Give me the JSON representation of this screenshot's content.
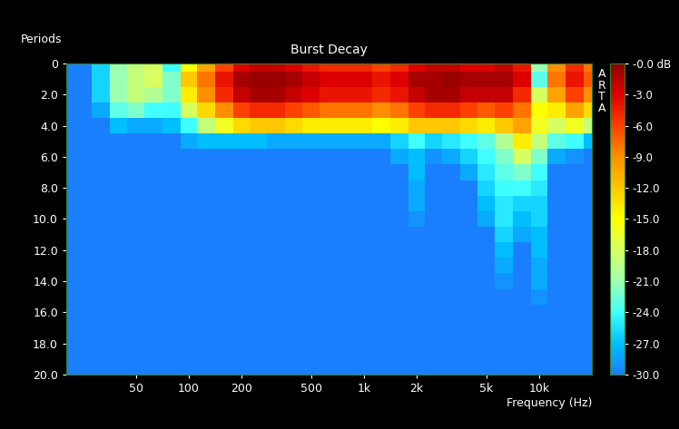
{
  "chart_data": {
    "type": "heatmap",
    "title": "Burst Decay",
    "x_label": "Frequency (Hz)",
    "y_label": "Periods",
    "annotations": [
      "ARTA"
    ],
    "log": "x",
    "xlim": [
      20,
      20000
    ],
    "xticks": [
      50,
      100,
      200,
      500,
      {
        "value": 1000,
        "label": "1k"
      },
      {
        "value": 2000,
        "label": "2k"
      },
      {
        "value": 5000,
        "label": "5k"
      },
      {
        "value": 10000,
        "label": "10k"
      }
    ],
    "ylim": [
      20,
      0
    ],
    "yticks": [
      0,
      {
        "value": 2,
        "label": "2.0"
      },
      {
        "value": 4,
        "label": "4.0"
      },
      {
        "value": 6,
        "label": "6.0"
      },
      {
        "value": 8,
        "label": "8.0"
      },
      {
        "value": 10,
        "label": "10.0"
      },
      {
        "value": 12,
        "label": "12.0"
      },
      {
        "value": 14,
        "label": "14.0"
      },
      {
        "value": 16,
        "label": "16.0"
      },
      {
        "value": 18,
        "label": "18.0"
      },
      {
        "value": 20,
        "label": "20.0"
      }
    ],
    "color_range": [
      -30,
      0
    ],
    "color_ticks": [
      {
        "value": 0,
        "label": "-0.0 dB"
      },
      {
        "value": -3,
        "label": "-3.0"
      },
      {
        "value": -6,
        "label": "-6.0"
      },
      {
        "value": -9,
        "label": "-9.0"
      },
      {
        "value": -12,
        "label": "-12.0"
      },
      {
        "value": -15,
        "label": "-15.0"
      },
      {
        "value": -18,
        "label": "-18.0"
      },
      {
        "value": -21,
        "label": "-21.0"
      },
      {
        "value": -24,
        "label": "-24.0"
      },
      {
        "value": -27,
        "label": "-27.0"
      },
      {
        "value": -30,
        "label": "-30.0"
      }
    ],
    "x": [
      20,
      25,
      31.5,
      40,
      50,
      63,
      80,
      100,
      125,
      160,
      200,
      250,
      315,
      400,
      500,
      630,
      800,
      1000,
      1250,
      1600,
      2000,
      2500,
      3150,
      4000,
      5000,
      6300,
      8000,
      10000,
      12500,
      16000,
      20000
    ],
    "y": [
      0,
      1,
      2,
      3,
      4,
      5,
      6,
      7,
      8,
      9,
      10,
      11,
      12,
      13,
      14,
      15,
      16,
      17,
      18,
      19,
      20
    ],
    "cells": [
      [
        -30,
        -30,
        -30,
        -30,
        -30,
        -30,
        -30,
        -30,
        -30,
        -30,
        -30,
        -30,
        -30,
        -30,
        -30,
        -30,
        -30,
        -30,
        -30,
        -30,
        -30
      ],
      [
        -30,
        -30,
        -30,
        -30,
        -30,
        -30,
        -30,
        -30,
        -30,
        -30,
        -30,
        -30,
        -30,
        -30,
        -30,
        -30,
        -30,
        -30,
        -30,
        -30,
        -30
      ],
      [
        -26,
        -26,
        -26,
        -28,
        -30,
        -30,
        -30,
        -30,
        -30,
        -30,
        -30,
        -30,
        -30,
        -30,
        -30,
        -30,
        -30,
        -30,
        -30,
        -30,
        -30
      ],
      [
        -21,
        -21,
        -21,
        -23,
        -27,
        -30,
        -30,
        -30,
        -30,
        -30,
        -30,
        -30,
        -30,
        -30,
        -30,
        -30,
        -30,
        -30,
        -30,
        -30,
        -30
      ],
      [
        -19,
        -19,
        -19,
        -22,
        -28,
        -30,
        -30,
        -30,
        -30,
        -30,
        -30,
        -30,
        -30,
        -30,
        -30,
        -30,
        -30,
        -30,
        -30,
        -30,
        -30
      ],
      [
        -18,
        -18,
        -20,
        -24,
        -28,
        -30,
        -30,
        -30,
        -30,
        -30,
        -30,
        -30,
        -30,
        -30,
        -30,
        -30,
        -30,
        -30,
        -30,
        -30,
        -30
      ],
      [
        -24,
        -22,
        -22,
        -24,
        -27,
        -30,
        -30,
        -30,
        -30,
        -30,
        -30,
        -30,
        -30,
        -30,
        -30,
        -30,
        -30,
        -30,
        -30,
        -30,
        -30
      ],
      [
        -15,
        -12,
        -14,
        -18,
        -24,
        -28,
        -30,
        -30,
        -30,
        -30,
        -30,
        -30,
        -30,
        -30,
        -30,
        -30,
        -30,
        -30,
        -30,
        -30,
        -30
      ],
      [
        -10,
        -8,
        -9,
        -13,
        -19,
        -27,
        -30,
        -30,
        -30,
        -30,
        -30,
        -30,
        -30,
        -30,
        -30,
        -30,
        -30,
        -30,
        -30,
        -30,
        -30
      ],
      [
        -6,
        -4,
        -5,
        -9,
        -16,
        -27,
        -30,
        -30,
        -30,
        -30,
        -30,
        -30,
        -30,
        -30,
        -30,
        -30,
        -30,
        -30,
        -30,
        -30,
        -30
      ],
      [
        -3,
        -1,
        -2,
        -6,
        -13,
        -27,
        -30,
        -30,
        -30,
        -30,
        -30,
        -30,
        -30,
        -30,
        -30,
        -30,
        -30,
        -30,
        -30,
        -30,
        -30
      ],
      [
        -2,
        -0.5,
        -1,
        -5,
        -12,
        -27,
        -30,
        -30,
        -30,
        -30,
        -30,
        -30,
        -30,
        -30,
        -30,
        -30,
        -30,
        -30,
        -30,
        -30,
        -30
      ],
      [
        -2,
        -0.5,
        -1,
        -5,
        -12,
        -28,
        -30,
        -30,
        -30,
        -30,
        -30,
        -30,
        -30,
        -30,
        -30,
        -30,
        -30,
        -30,
        -30,
        -30,
        -30
      ],
      [
        -3,
        -1,
        -2,
        -6,
        -13,
        -28,
        -30,
        -30,
        -30,
        -30,
        -30,
        -30,
        -30,
        -30,
        -30,
        -30,
        -30,
        -30,
        -30,
        -30,
        -30
      ],
      [
        -4,
        -2,
        -3,
        -7,
        -14,
        -28,
        -30,
        -30,
        -30,
        -30,
        -30,
        -30,
        -30,
        -30,
        -30,
        -30,
        -30,
        -30,
        -30,
        -30,
        -30
      ],
      [
        -5,
        -3,
        -4,
        -8,
        -14,
        -28,
        -30,
        -30,
        -30,
        -30,
        -30,
        -30,
        -30,
        -30,
        -30,
        -30,
        -30,
        -30,
        -30,
        -30,
        -30
      ],
      [
        -5,
        -3,
        -4,
        -8,
        -14,
        -28,
        -30,
        -30,
        -30,
        -30,
        -30,
        -30,
        -30,
        -30,
        -30,
        -30,
        -30,
        -30,
        -30,
        -30,
        -30
      ],
      [
        -5,
        -3,
        -4,
        -8,
        -14,
        -28,
        -30,
        -30,
        -30,
        -30,
        -30,
        -30,
        -30,
        -30,
        -30,
        -30,
        -30,
        -30,
        -30,
        -30,
        -30
      ],
      [
        -6,
        -4,
        -5,
        -9,
        -15,
        -28,
        -30,
        -30,
        -30,
        -30,
        -30,
        -30,
        -30,
        -30,
        -30,
        -30,
        -30,
        -30,
        -30,
        -30,
        -30
      ],
      [
        -5,
        -3,
        -4,
        -8,
        -14,
        -26,
        -28,
        -30,
        -30,
        -30,
        -30,
        -30,
        -30,
        -30,
        -30,
        -30,
        -30,
        -30,
        -30,
        -30,
        -30
      ],
      [
        -3,
        -1,
        -2,
        -6,
        -12,
        -24,
        -27,
        -27,
        -28,
        -28,
        -29,
        -30,
        -30,
        -30,
        -30,
        -30,
        -30,
        -30,
        -30,
        -30,
        -30
      ],
      [
        -2,
        -1,
        -1,
        -5,
        -12,
        -26,
        -29,
        -30,
        -30,
        -30,
        -30,
        -30,
        -30,
        -30,
        -30,
        -30,
        -30,
        -30,
        -30,
        -30,
        -30
      ],
      [
        -2,
        -0.5,
        -1,
        -5,
        -12,
        -25,
        -28,
        -30,
        -30,
        -30,
        -30,
        -30,
        -30,
        -30,
        -30,
        -30,
        -30,
        -30,
        -30,
        -30,
        -30
      ],
      [
        -3,
        -1,
        -2,
        -6,
        -13,
        -24,
        -26,
        -28,
        -30,
        -30,
        -30,
        -30,
        -30,
        -30,
        -30,
        -30,
        -30,
        -30,
        -30,
        -30,
        -30
      ],
      [
        -3,
        -1,
        -2,
        -7,
        -14,
        -23,
        -24,
        -25,
        -26,
        -27,
        -28,
        -30,
        -30,
        -30,
        -30,
        -30,
        -30,
        -30,
        -30,
        -30,
        -30
      ],
      [
        -2,
        -1,
        -2,
        -6,
        -12,
        -20,
        -22,
        -23,
        -24,
        -25,
        -25,
        -26,
        -27,
        -28,
        -29,
        -30,
        -30,
        -30,
        -30,
        -30,
        -30
      ],
      [
        -4,
        -3,
        -5,
        -8,
        -10,
        -14,
        -18,
        -22,
        -24,
        -26,
        -27,
        -28,
        -30,
        -30,
        -30,
        -30,
        -30,
        -30,
        -30,
        -30,
        -30
      ],
      [
        -21,
        -23,
        -18,
        -15,
        -16,
        -19,
        -22,
        -24,
        -25,
        -26,
        -26,
        -27,
        -27,
        -28,
        -28,
        -29,
        -30,
        -30,
        -30,
        -30,
        -30
      ],
      [
        -9,
        -8,
        -10,
        -14,
        -18,
        -23,
        -28,
        -30,
        -30,
        -30,
        -30,
        -30,
        -30,
        -30,
        -30,
        -30,
        -30,
        -30,
        -30,
        -30,
        -30
      ],
      [
        -5,
        -4,
        -6,
        -10,
        -16,
        -24,
        -29,
        -30,
        -30,
        -30,
        -30,
        -30,
        -30,
        -30,
        -30,
        -30,
        -30,
        -30,
        -30,
        -30,
        -30
      ],
      [
        -8,
        -7,
        -9,
        -13,
        -19,
        -27,
        -30,
        -30,
        -30,
        -30,
        -30,
        -30,
        -30,
        -30,
        -30,
        -30,
        -30,
        -30,
        -30,
        -30,
        -30
      ]
    ]
  }
}
